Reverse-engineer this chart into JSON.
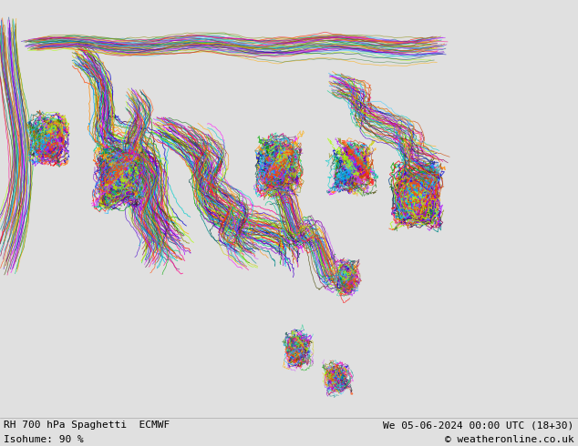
{
  "title_left": "RH 700 hPa Spaghetti  ECMWF",
  "title_right": "We 05-06-2024 00:00 UTC (18+30)",
  "bottom_left": "Isohume: 90 %",
  "bottom_right": "© weatheronline.co.uk",
  "bg_color": "#e0e0e0",
  "land_color": "#ccffcc",
  "ocean_color": "#e0e0e0",
  "border_color": "#666666",
  "text_color": "#000000",
  "fig_width": 6.34,
  "fig_height": 4.9,
  "dpi": 100,
  "bottom_bar_color": "#ffffff",
  "font_size_bottom": 8,
  "font_size_title": 8,
  "spaghetti_colors": [
    "#ff00ff",
    "#ff0000",
    "#00cccc",
    "#0000cc",
    "#cccc00",
    "#ff8800",
    "#00aa00",
    "#8800cc",
    "#ff0088",
    "#008888",
    "#888800",
    "#cc4400",
    "#00cc88",
    "#4400cc",
    "#cc44ff",
    "#44ccff",
    "#ffaa00",
    "#aa00ff",
    "#00aaff",
    "#aaff00",
    "#ff4400",
    "#884400",
    "#004488",
    "#448800",
    "#880044",
    "#444400",
    "#004444",
    "#440044",
    "#884488",
    "#448844"
  ]
}
